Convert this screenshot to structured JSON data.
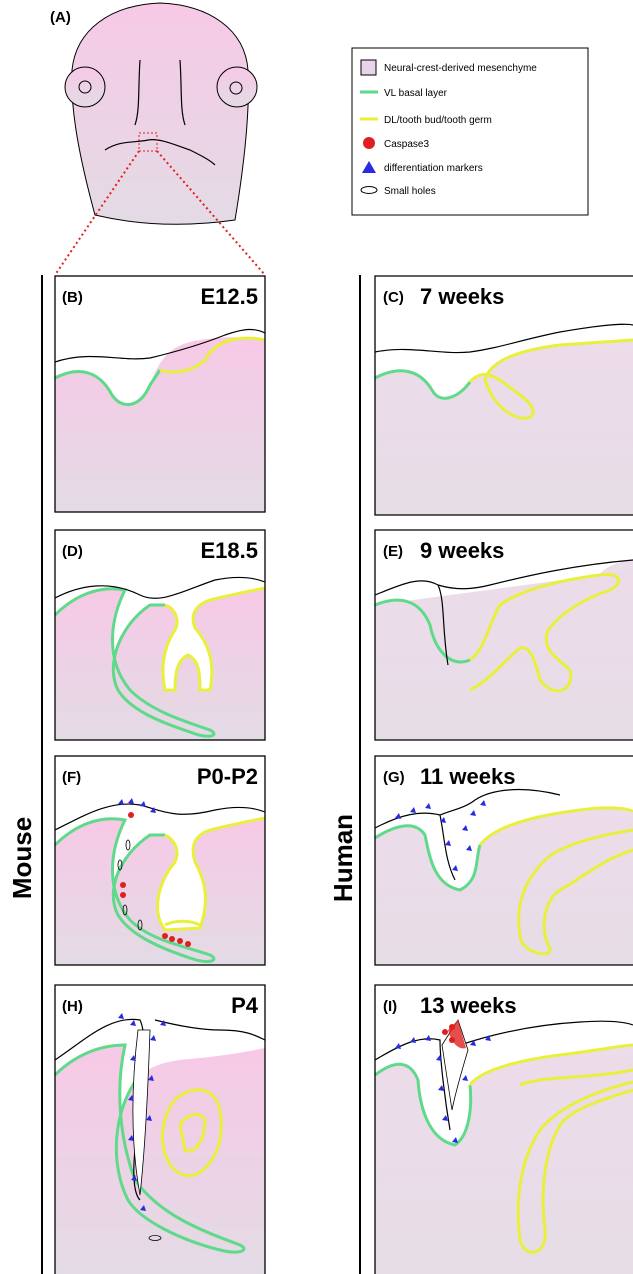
{
  "panels": [
    {
      "label": "(A)"
    },
    {
      "label": "(B)",
      "title": "E12.5"
    },
    {
      "label": "(C)",
      "title": "7 weeks"
    },
    {
      "label": "(D)",
      "title": "E18.5"
    },
    {
      "label": "(E)",
      "title": "9 weeks"
    },
    {
      "label": "(F)",
      "title": "P0-P2"
    },
    {
      "label": "(G)",
      "title": "11 weeks"
    },
    {
      "label": "(H)",
      "title": "P4"
    },
    {
      "label": "(I)",
      "title": "13 weeks"
    }
  ],
  "legend": [
    "Neural-crest-derived mesenchyme",
    "VL basal layer",
    "DL/tooth bud/tooth germ",
    "Caspase3",
    "differentiation markers",
    "Small holes"
  ],
  "groups": [
    "Mouse",
    "Human"
  ]
}
